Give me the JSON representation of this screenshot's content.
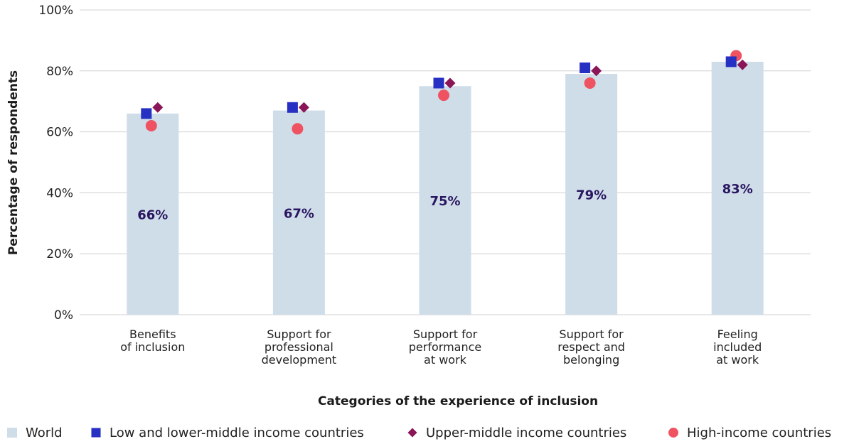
{
  "chart_data": {
    "type": "bar",
    "title": "",
    "xlabel": "Categories of the experience of inclusion",
    "ylabel": "Percentage of respondents",
    "ylim": [
      0,
      100
    ],
    "yticks": [
      0,
      20,
      40,
      60,
      80,
      100
    ],
    "ytick_labels": [
      "0%",
      "20%",
      "40%",
      "60%",
      "80%",
      "100%"
    ],
    "grid": true,
    "legend_position": "bottom",
    "categories": [
      [
        "Benefits",
        "of inclusion"
      ],
      [
        "Support for",
        "professional",
        "development"
      ],
      [
        "Support for",
        "performance",
        "at work"
      ],
      [
        "Support for",
        "respect and",
        "belonging"
      ],
      [
        "Feeling",
        "included",
        "at work"
      ]
    ],
    "bar_series": {
      "name": "World",
      "values": [
        66,
        67,
        75,
        79,
        83
      ],
      "labels": [
        "66%",
        "67%",
        "75%",
        "79%",
        "83%"
      ],
      "color": "#cfdde9"
    },
    "marker_series": [
      {
        "name": "Low and lower-middle income countries",
        "marker": "square",
        "color": "#2630c2",
        "values": [
          66,
          68,
          76,
          81,
          83
        ]
      },
      {
        "name": "Upper-middle income countries",
        "marker": "diamond",
        "color": "#8a1657",
        "values": [
          68,
          68,
          76,
          80,
          82
        ]
      },
      {
        "name": "High-income countries",
        "marker": "circle",
        "color": "#ef5261",
        "values": [
          62,
          61,
          72,
          76,
          85
        ]
      }
    ],
    "colors": {
      "grid": "#d0d0d0",
      "bar_label": "#2a1660"
    }
  }
}
